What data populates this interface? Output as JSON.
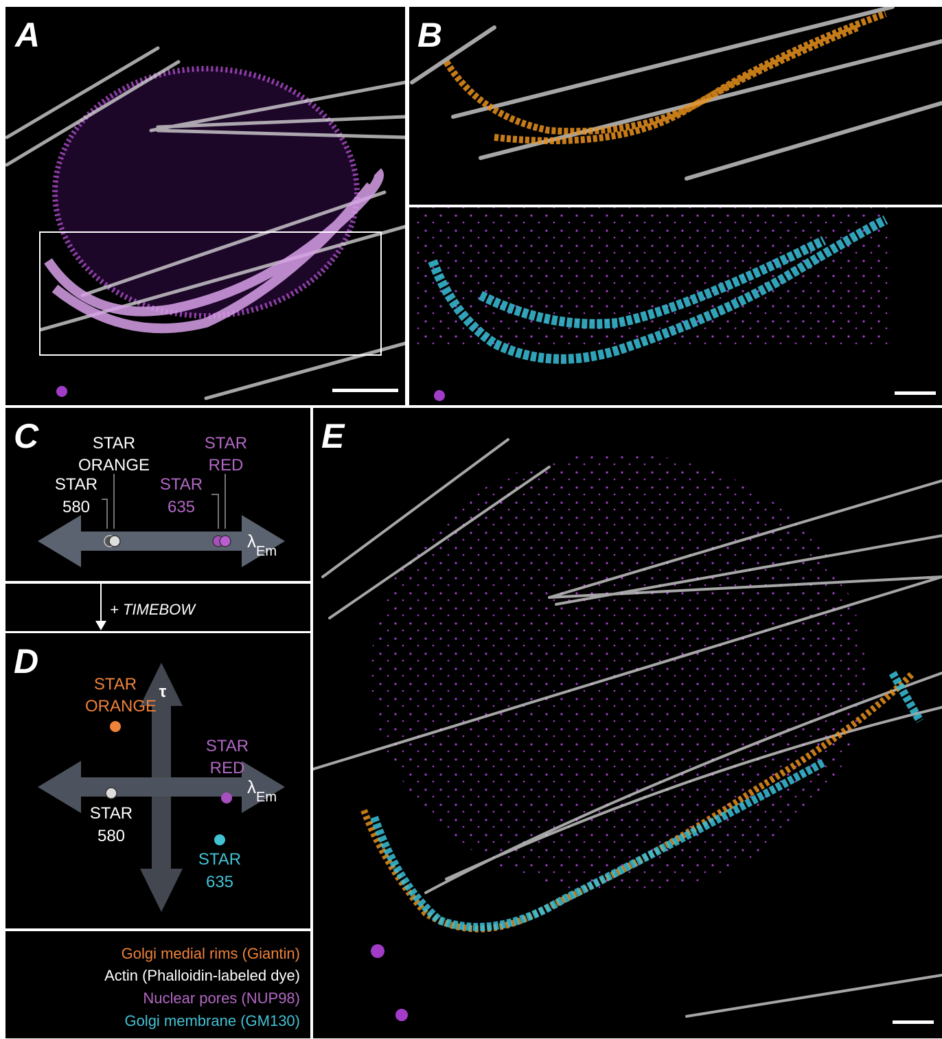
{
  "panel_labels": [
    "A",
    "B",
    "C",
    "D",
    "E"
  ],
  "panel_c": {
    "dyes": [
      {
        "lines": [
          "STAR",
          "ORANGE"
        ]
      },
      {
        "lines": [
          "STAR",
          "580"
        ]
      },
      {
        "lines": [
          "STAR",
          "RED"
        ]
      },
      {
        "lines": [
          "STAR",
          "635"
        ]
      }
    ],
    "axis_symbol": "λ",
    "axis_subscript": "Em"
  },
  "transition": "+ TIMEBOW",
  "panel_d": {
    "lifetime_symbol": "τ",
    "dyes": [
      {
        "lines": [
          "STAR",
          "ORANGE"
        ]
      },
      {
        "lines": [
          "STAR",
          "RED"
        ]
      },
      {
        "lines": [
          "STAR",
          "580"
        ]
      },
      {
        "lines": [
          "STAR",
          "635"
        ]
      }
    ],
    "axis_symbol": "λ",
    "axis_subscript": "Em"
  },
  "legend": [
    "Golgi medial rims (Giantin)",
    "Actin (Phalloidin-labeled dye)",
    "Nuclear pores (NUP98)",
    "Golgi membrane (GM130)"
  ]
}
